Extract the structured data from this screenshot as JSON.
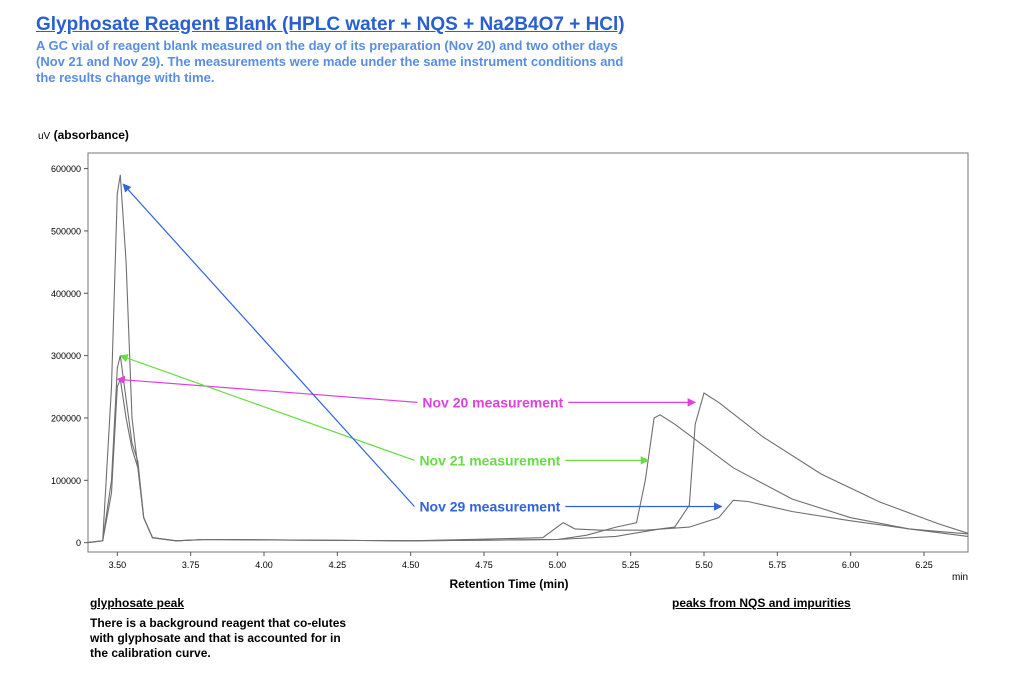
{
  "page": {
    "title": "Glyphosate Reagent Blank (HPLC water + NQS + Na2B4O7 + HCl)",
    "subtitle": "A GC vial of reagent blank measured on the day of its preparation (Nov 20) and two other days (Nov 21 and Nov 29). The measurements were made under the same instrument conditions and the results change with time.",
    "glyphosate_heading": "glyphosate peak",
    "glyphosate_note": "There is a background reagent that co-elutes with glyphosate and that is accounted for in the calibration curve.",
    "nqs_heading": "peaks from NQS and impurities"
  },
  "colors": {
    "title": "#2a5fd0",
    "subtitle": "#5a8de0",
    "trace": "#6f6f6f",
    "nov20": "#e040e0",
    "nov21": "#66dd44",
    "nov29": "#2f63e0"
  },
  "chart_data": {
    "type": "line",
    "title": "",
    "ylabel_unit": "uV",
    "ylabel": "(absorbance)",
    "xlabel": "Retention Time (min)",
    "x_unit": "min",
    "xlim": [
      3.4,
      6.4
    ],
    "ylim": [
      -15000,
      625000
    ],
    "xticks": [
      "3.50",
      "3.75",
      "4.00",
      "4.25",
      "4.50",
      "4.75",
      "5.00",
      "5.25",
      "5.50",
      "5.75",
      "6.00",
      "6.25"
    ],
    "yticks": [
      "0",
      "100000",
      "200000",
      "300000",
      "400000",
      "500000",
      "600000"
    ],
    "grid": false,
    "series": [
      {
        "name": "Nov 20 measurement",
        "color": "#6f6f6f",
        "points": [
          [
            3.4,
            0
          ],
          [
            3.45,
            3000
          ],
          [
            3.48,
            80000
          ],
          [
            3.5,
            250000
          ],
          [
            3.51,
            262000
          ],
          [
            3.53,
            200000
          ],
          [
            3.55,
            150000
          ],
          [
            3.57,
            120000
          ],
          [
            3.59,
            40000
          ],
          [
            3.62,
            8000
          ],
          [
            3.7,
            3000
          ],
          [
            3.8,
            5000
          ],
          [
            4.5,
            3000
          ],
          [
            5.0,
            5000
          ],
          [
            5.2,
            10000
          ],
          [
            5.35,
            22000
          ],
          [
            5.4,
            25000
          ],
          [
            5.45,
            60000
          ],
          [
            5.47,
            190000
          ],
          [
            5.5,
            240000
          ],
          [
            5.55,
            225000
          ],
          [
            5.7,
            170000
          ],
          [
            5.9,
            110000
          ],
          [
            6.1,
            65000
          ],
          [
            6.3,
            30000
          ],
          [
            6.4,
            15000
          ]
        ]
      },
      {
        "name": "Nov 21 measurement",
        "color": "#6f6f6f",
        "points": [
          [
            3.4,
            0
          ],
          [
            3.45,
            3000
          ],
          [
            3.48,
            100000
          ],
          [
            3.5,
            280000
          ],
          [
            3.51,
            300000
          ],
          [
            3.53,
            230000
          ],
          [
            3.55,
            160000
          ],
          [
            3.57,
            130000
          ],
          [
            3.59,
            40000
          ],
          [
            3.62,
            8000
          ],
          [
            3.7,
            3000
          ],
          [
            3.8,
            5000
          ],
          [
            4.5,
            3000
          ],
          [
            5.0,
            5000
          ],
          [
            5.1,
            12000
          ],
          [
            5.2,
            25000
          ],
          [
            5.27,
            32000
          ],
          [
            5.3,
            100000
          ],
          [
            5.33,
            200000
          ],
          [
            5.35,
            205000
          ],
          [
            5.4,
            190000
          ],
          [
            5.6,
            120000
          ],
          [
            5.8,
            70000
          ],
          [
            6.0,
            40000
          ],
          [
            6.2,
            22000
          ],
          [
            6.4,
            10000
          ]
        ]
      },
      {
        "name": "Nov 29 measurement",
        "color": "#6f6f6f",
        "points": [
          [
            3.4,
            0
          ],
          [
            3.45,
            3000
          ],
          [
            3.48,
            250000
          ],
          [
            3.5,
            560000
          ],
          [
            3.51,
            590000
          ],
          [
            3.53,
            450000
          ],
          [
            3.55,
            200000
          ],
          [
            3.57,
            120000
          ],
          [
            3.59,
            40000
          ],
          [
            3.62,
            8000
          ],
          [
            3.7,
            3000
          ],
          [
            3.8,
            5000
          ],
          [
            4.5,
            3000
          ],
          [
            4.95,
            8000
          ],
          [
            5.02,
            32000
          ],
          [
            5.06,
            22000
          ],
          [
            5.15,
            20000
          ],
          [
            5.3,
            20000
          ],
          [
            5.45,
            25000
          ],
          [
            5.55,
            40000
          ],
          [
            5.6,
            68000
          ],
          [
            5.65,
            66000
          ],
          [
            5.8,
            50000
          ],
          [
            6.0,
            35000
          ],
          [
            6.2,
            22000
          ],
          [
            6.4,
            14000
          ]
        ]
      }
    ],
    "annotations": [
      {
        "text": "Nov 20 measurement",
        "color": "#e040e0",
        "at": [
          4.78,
          225000
        ],
        "left_target": [
          3.5,
          262000
        ],
        "right_target": [
          5.47,
          225000
        ]
      },
      {
        "text": "Nov 21 measurement",
        "color": "#66dd44",
        "at": [
          4.77,
          132000
        ],
        "left_target": [
          3.51,
          300000
        ],
        "right_target": [
          5.31,
          132000
        ]
      },
      {
        "text": "Nov 29 measurement",
        "color": "#2f63e0",
        "at": [
          4.77,
          58000
        ],
        "left_target": [
          3.52,
          575000
        ],
        "right_target": [
          5.56,
          58000
        ]
      }
    ]
  }
}
